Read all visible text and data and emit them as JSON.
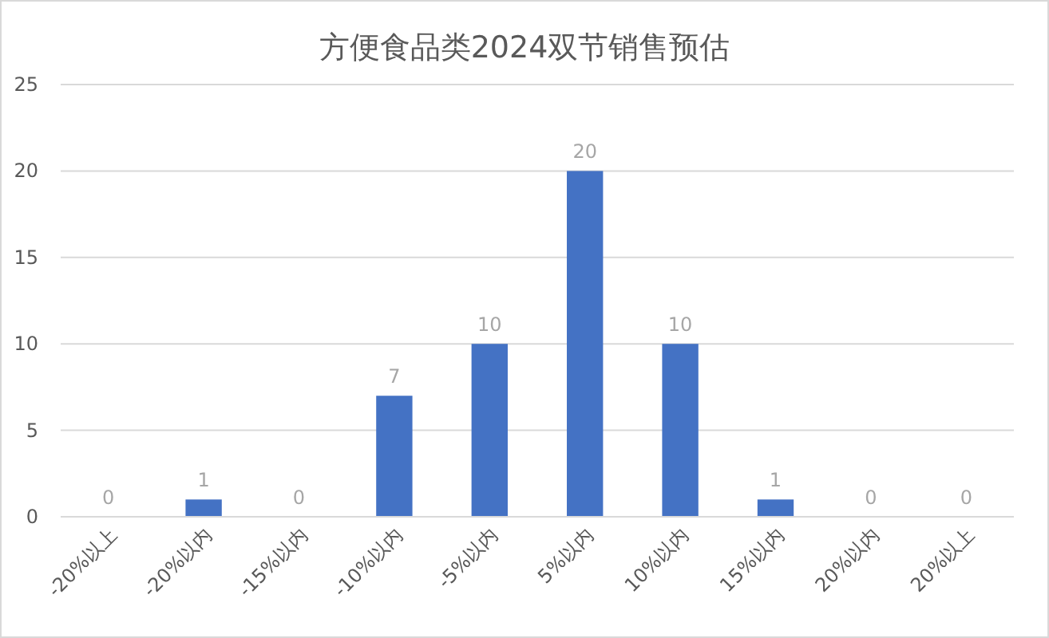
{
  "chart_data": {
    "type": "bar",
    "title": "方便食品类2024双节销售预估",
    "categories": [
      "-20%以上",
      "-20%以内",
      "-15%以内",
      "-10%以内",
      "-5%以内",
      "5%以内",
      "10%以内",
      "15%以内",
      "20%以内",
      "20%以上"
    ],
    "values": [
      0,
      1,
      0,
      7,
      10,
      20,
      10,
      1,
      0,
      0
    ],
    "color": "#4472c4",
    "ylim": [
      0,
      25
    ],
    "yticks": [
      0,
      5,
      10,
      15,
      20,
      25
    ],
    "grid": "y",
    "data_labels": true
  }
}
